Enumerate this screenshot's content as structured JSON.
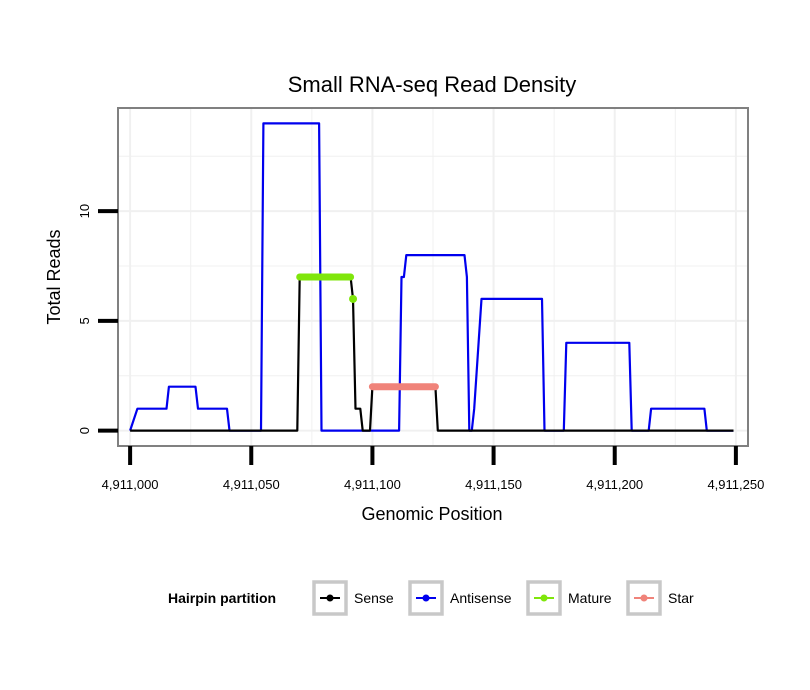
{
  "chart_data": {
    "type": "line",
    "title": "Small RNA-seq Read Density",
    "xlabel": "Genomic Position",
    "ylabel": "Total Reads",
    "xlim": [
      4910995,
      4911255
    ],
    "ylim": [
      -0.7,
      14.7
    ],
    "x_ticks": [
      {
        "value": 4911000,
        "label": "4,911,000"
      },
      {
        "value": 4911050,
        "label": "4,911,050"
      },
      {
        "value": 4911100,
        "label": "4,911,100"
      },
      {
        "value": 4911150,
        "label": "4,911,150"
      },
      {
        "value": 4911200,
        "label": "4,911,200"
      },
      {
        "value": 4911250,
        "label": "4,911,250"
      }
    ],
    "y_ticks": [
      {
        "value": 0,
        "label": "0"
      },
      {
        "value": 5,
        "label": "5"
      },
      {
        "value": 10,
        "label": "10"
      }
    ],
    "grid": true,
    "legend": {
      "title": "Hairpin partition",
      "position": "bottom",
      "entries": [
        "Sense",
        "Antisense",
        "Mature",
        "Star"
      ]
    },
    "colors": {
      "Sense": "#000000",
      "Antisense": "#0000ee",
      "Mature": "#7fe60b",
      "Star": "#f0837a",
      "grid": "#f0f0f0",
      "panel_border": "#808080"
    },
    "series": [
      {
        "name": "Antisense",
        "x": [
          4911000,
          4911003,
          4911015,
          4911016,
          4911027,
          4911028,
          4911040,
          4911041,
          4911054,
          4911055,
          4911078,
          4911079,
          4911111,
          4911112,
          4911113,
          4911114,
          4911138,
          4911139,
          4911140,
          4911141,
          4911142,
          4911145,
          4911170,
          4911171,
          4911179,
          4911180,
          4911206,
          4911207,
          4911214,
          4911215,
          4911237,
          4911238,
          4911249
        ],
        "y": [
          0,
          1,
          1,
          2,
          2,
          1,
          1,
          0,
          0,
          14,
          14,
          0,
          0,
          7,
          7,
          8,
          8,
          7,
          0,
          0,
          1,
          6,
          6,
          0,
          0,
          4,
          4,
          0,
          0,
          1,
          1,
          0,
          0
        ]
      },
      {
        "name": "Sense",
        "x": [
          4911000,
          4911069,
          4911070,
          4911091,
          4911092,
          4911093,
          4911095,
          4911096,
          4911099,
          4911100,
          4911126,
          4911127,
          4911249
        ],
        "y": [
          0,
          0,
          7,
          7,
          6,
          1,
          1,
          0,
          0,
          2,
          2,
          0,
          0
        ]
      },
      {
        "name": "Mature",
        "x": [
          4911070,
          4911091
        ],
        "y": [
          7,
          7
        ],
        "points": [
          {
            "x": 4911092,
            "y": 6
          }
        ]
      },
      {
        "name": "Star",
        "x": [
          4911100,
          4911126
        ],
        "y": [
          2,
          2
        ]
      }
    ]
  }
}
